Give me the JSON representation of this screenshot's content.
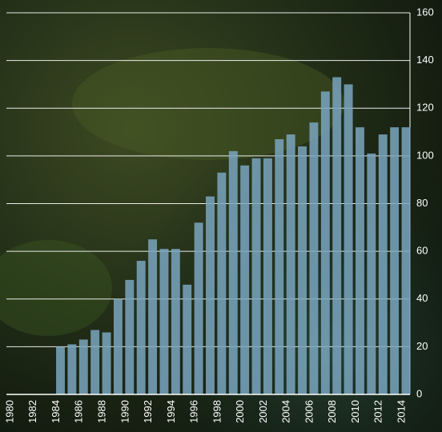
{
  "chart_data": {
    "type": "bar",
    "categories": [
      "1980",
      null,
      "1982",
      null,
      "1984",
      null,
      "1986",
      null,
      "1988",
      null,
      "1990",
      null,
      "1992",
      null,
      "1994",
      null,
      "1996",
      null,
      "1998",
      null,
      "2000",
      null,
      "2002",
      null,
      "2004",
      null,
      "2006",
      null,
      "2008",
      null,
      "2010",
      null,
      "2012",
      null,
      "2014"
    ],
    "values": [
      null,
      null,
      null,
      null,
      20,
      21,
      23,
      27,
      26,
      40,
      48,
      56,
      65,
      61,
      61,
      46,
      72,
      83,
      93,
      102,
      96,
      99,
      99,
      107,
      109,
      104,
      114,
      127,
      133,
      130,
      112,
      101,
      109,
      112,
      112
    ],
    "color": "#7aa6bf",
    "ylim": [
      0,
      160
    ],
    "yticks": [
      0,
      20,
      40,
      60,
      80,
      100,
      120,
      140,
      160
    ],
    "grid": true
  }
}
